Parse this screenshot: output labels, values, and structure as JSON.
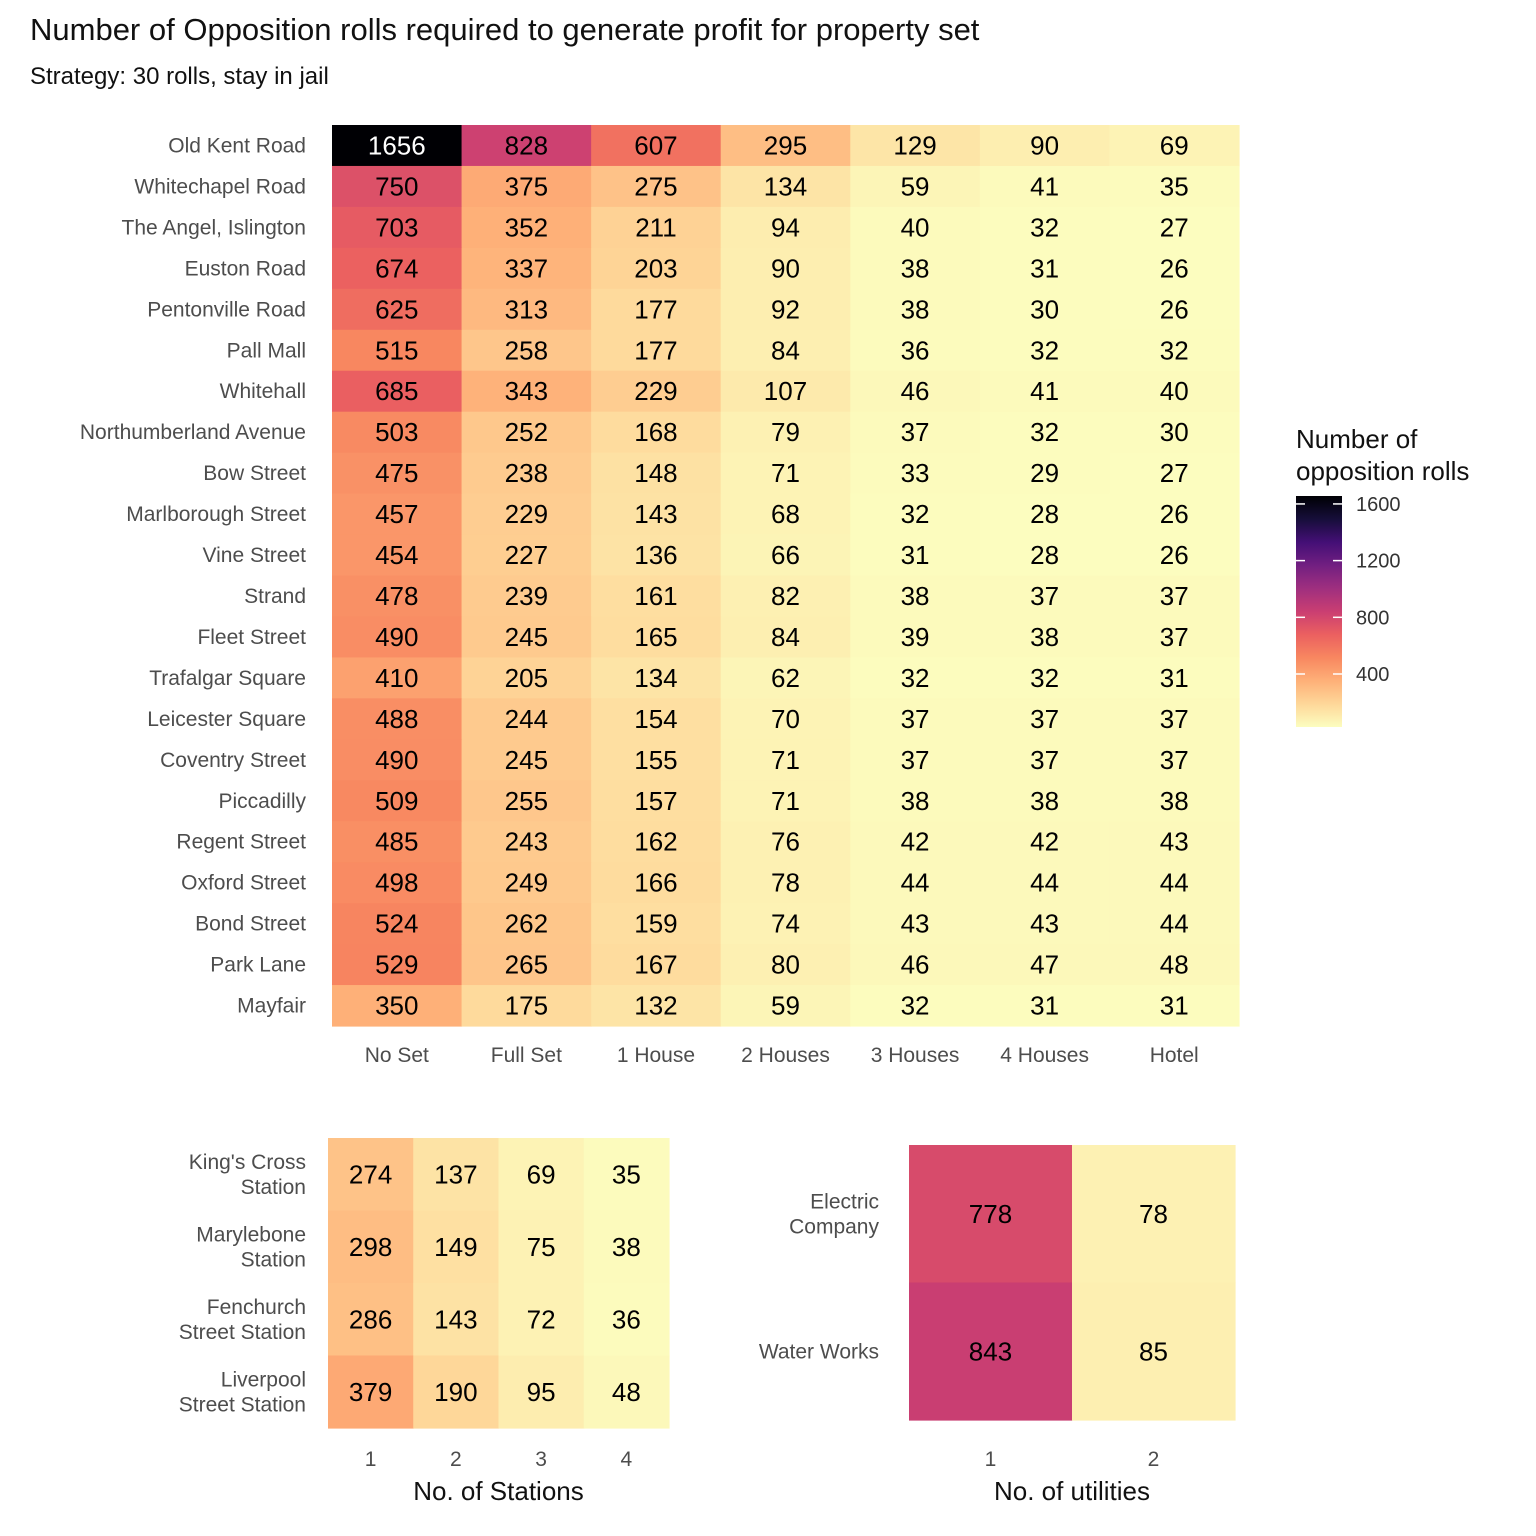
{
  "title": "Number of Opposition rolls required to generate profit for property set",
  "subtitle": "Strategy: 30 rolls, stay in jail",
  "legend": {
    "title_lines": [
      "Number of",
      "opposition rolls"
    ],
    "ticks": [
      1600,
      1200,
      800,
      400
    ],
    "tick_labels": [
      "1600",
      "1200",
      "800",
      "400"
    ],
    "range": [
      26,
      1656
    ],
    "palette": "magma-reversed"
  },
  "chart_data": [
    {
      "type": "heatmap",
      "name": "properties",
      "x_categories": [
        "No Set",
        "Full Set",
        "1 House",
        "2 Houses",
        "3 Houses",
        "4 Houses",
        "Hotel"
      ],
      "y_categories": [
        "Old Kent Road",
        "Whitechapel Road",
        "The Angel, Islington",
        "Euston Road",
        "Pentonville Road",
        "Pall Mall",
        "Whitehall",
        "Northumberland Avenue",
        "Bow Street",
        "Marlborough Street",
        "Vine Street",
        "Strand",
        "Fleet Street",
        "Trafalgar Square",
        "Leicester Square",
        "Coventry Street",
        "Piccadilly",
        "Regent Street",
        "Oxford Street",
        "Bond Street",
        "Park Lane",
        "Mayfair"
      ],
      "values": [
        [
          1656,
          828,
          607,
          295,
          129,
          90,
          69
        ],
        [
          750,
          375,
          275,
          134,
          59,
          41,
          35
        ],
        [
          703,
          352,
          211,
          94,
          40,
          32,
          27
        ],
        [
          674,
          337,
          203,
          90,
          38,
          31,
          26
        ],
        [
          625,
          313,
          177,
          92,
          38,
          30,
          26
        ],
        [
          515,
          258,
          177,
          84,
          36,
          32,
          32
        ],
        [
          685,
          343,
          229,
          107,
          46,
          41,
          40
        ],
        [
          503,
          252,
          168,
          79,
          37,
          32,
          30
        ],
        [
          475,
          238,
          148,
          71,
          33,
          29,
          27
        ],
        [
          457,
          229,
          143,
          68,
          32,
          28,
          26
        ],
        [
          454,
          227,
          136,
          66,
          31,
          28,
          26
        ],
        [
          478,
          239,
          161,
          82,
          38,
          37,
          37
        ],
        [
          490,
          245,
          165,
          84,
          39,
          38,
          37
        ],
        [
          410,
          205,
          134,
          62,
          32,
          32,
          31
        ],
        [
          488,
          244,
          154,
          70,
          37,
          37,
          37
        ],
        [
          490,
          245,
          155,
          71,
          37,
          37,
          37
        ],
        [
          509,
          255,
          157,
          71,
          38,
          38,
          38
        ],
        [
          485,
          243,
          162,
          76,
          42,
          42,
          43
        ],
        [
          498,
          249,
          166,
          78,
          44,
          44,
          44
        ],
        [
          524,
          262,
          159,
          74,
          43,
          43,
          44
        ],
        [
          529,
          265,
          167,
          80,
          46,
          47,
          48
        ],
        [
          350,
          175,
          132,
          59,
          32,
          31,
          31
        ]
      ],
      "xlabel": "",
      "ylabel": ""
    },
    {
      "type": "heatmap",
      "name": "stations",
      "x_categories": [
        "1",
        "2",
        "3",
        "4"
      ],
      "y_categories": [
        [
          "King's Cross",
          "Station"
        ],
        [
          "Marylebone",
          "Station"
        ],
        [
          "Fenchurch",
          "Street Station"
        ],
        [
          "Liverpool",
          "Street Station"
        ]
      ],
      "values": [
        [
          274,
          137,
          69,
          35
        ],
        [
          298,
          149,
          75,
          38
        ],
        [
          286,
          143,
          72,
          36
        ],
        [
          379,
          190,
          95,
          48
        ]
      ],
      "xlabel": "No. of Stations",
      "ylabel": ""
    },
    {
      "type": "heatmap",
      "name": "utilities",
      "x_categories": [
        "1",
        "2"
      ],
      "y_categories": [
        [
          "Electric",
          "Company"
        ],
        [
          "Water Works"
        ]
      ],
      "values": [
        [
          778,
          78
        ],
        [
          843,
          85
        ]
      ],
      "xlabel": "No. of utilities",
      "ylabel": ""
    }
  ]
}
